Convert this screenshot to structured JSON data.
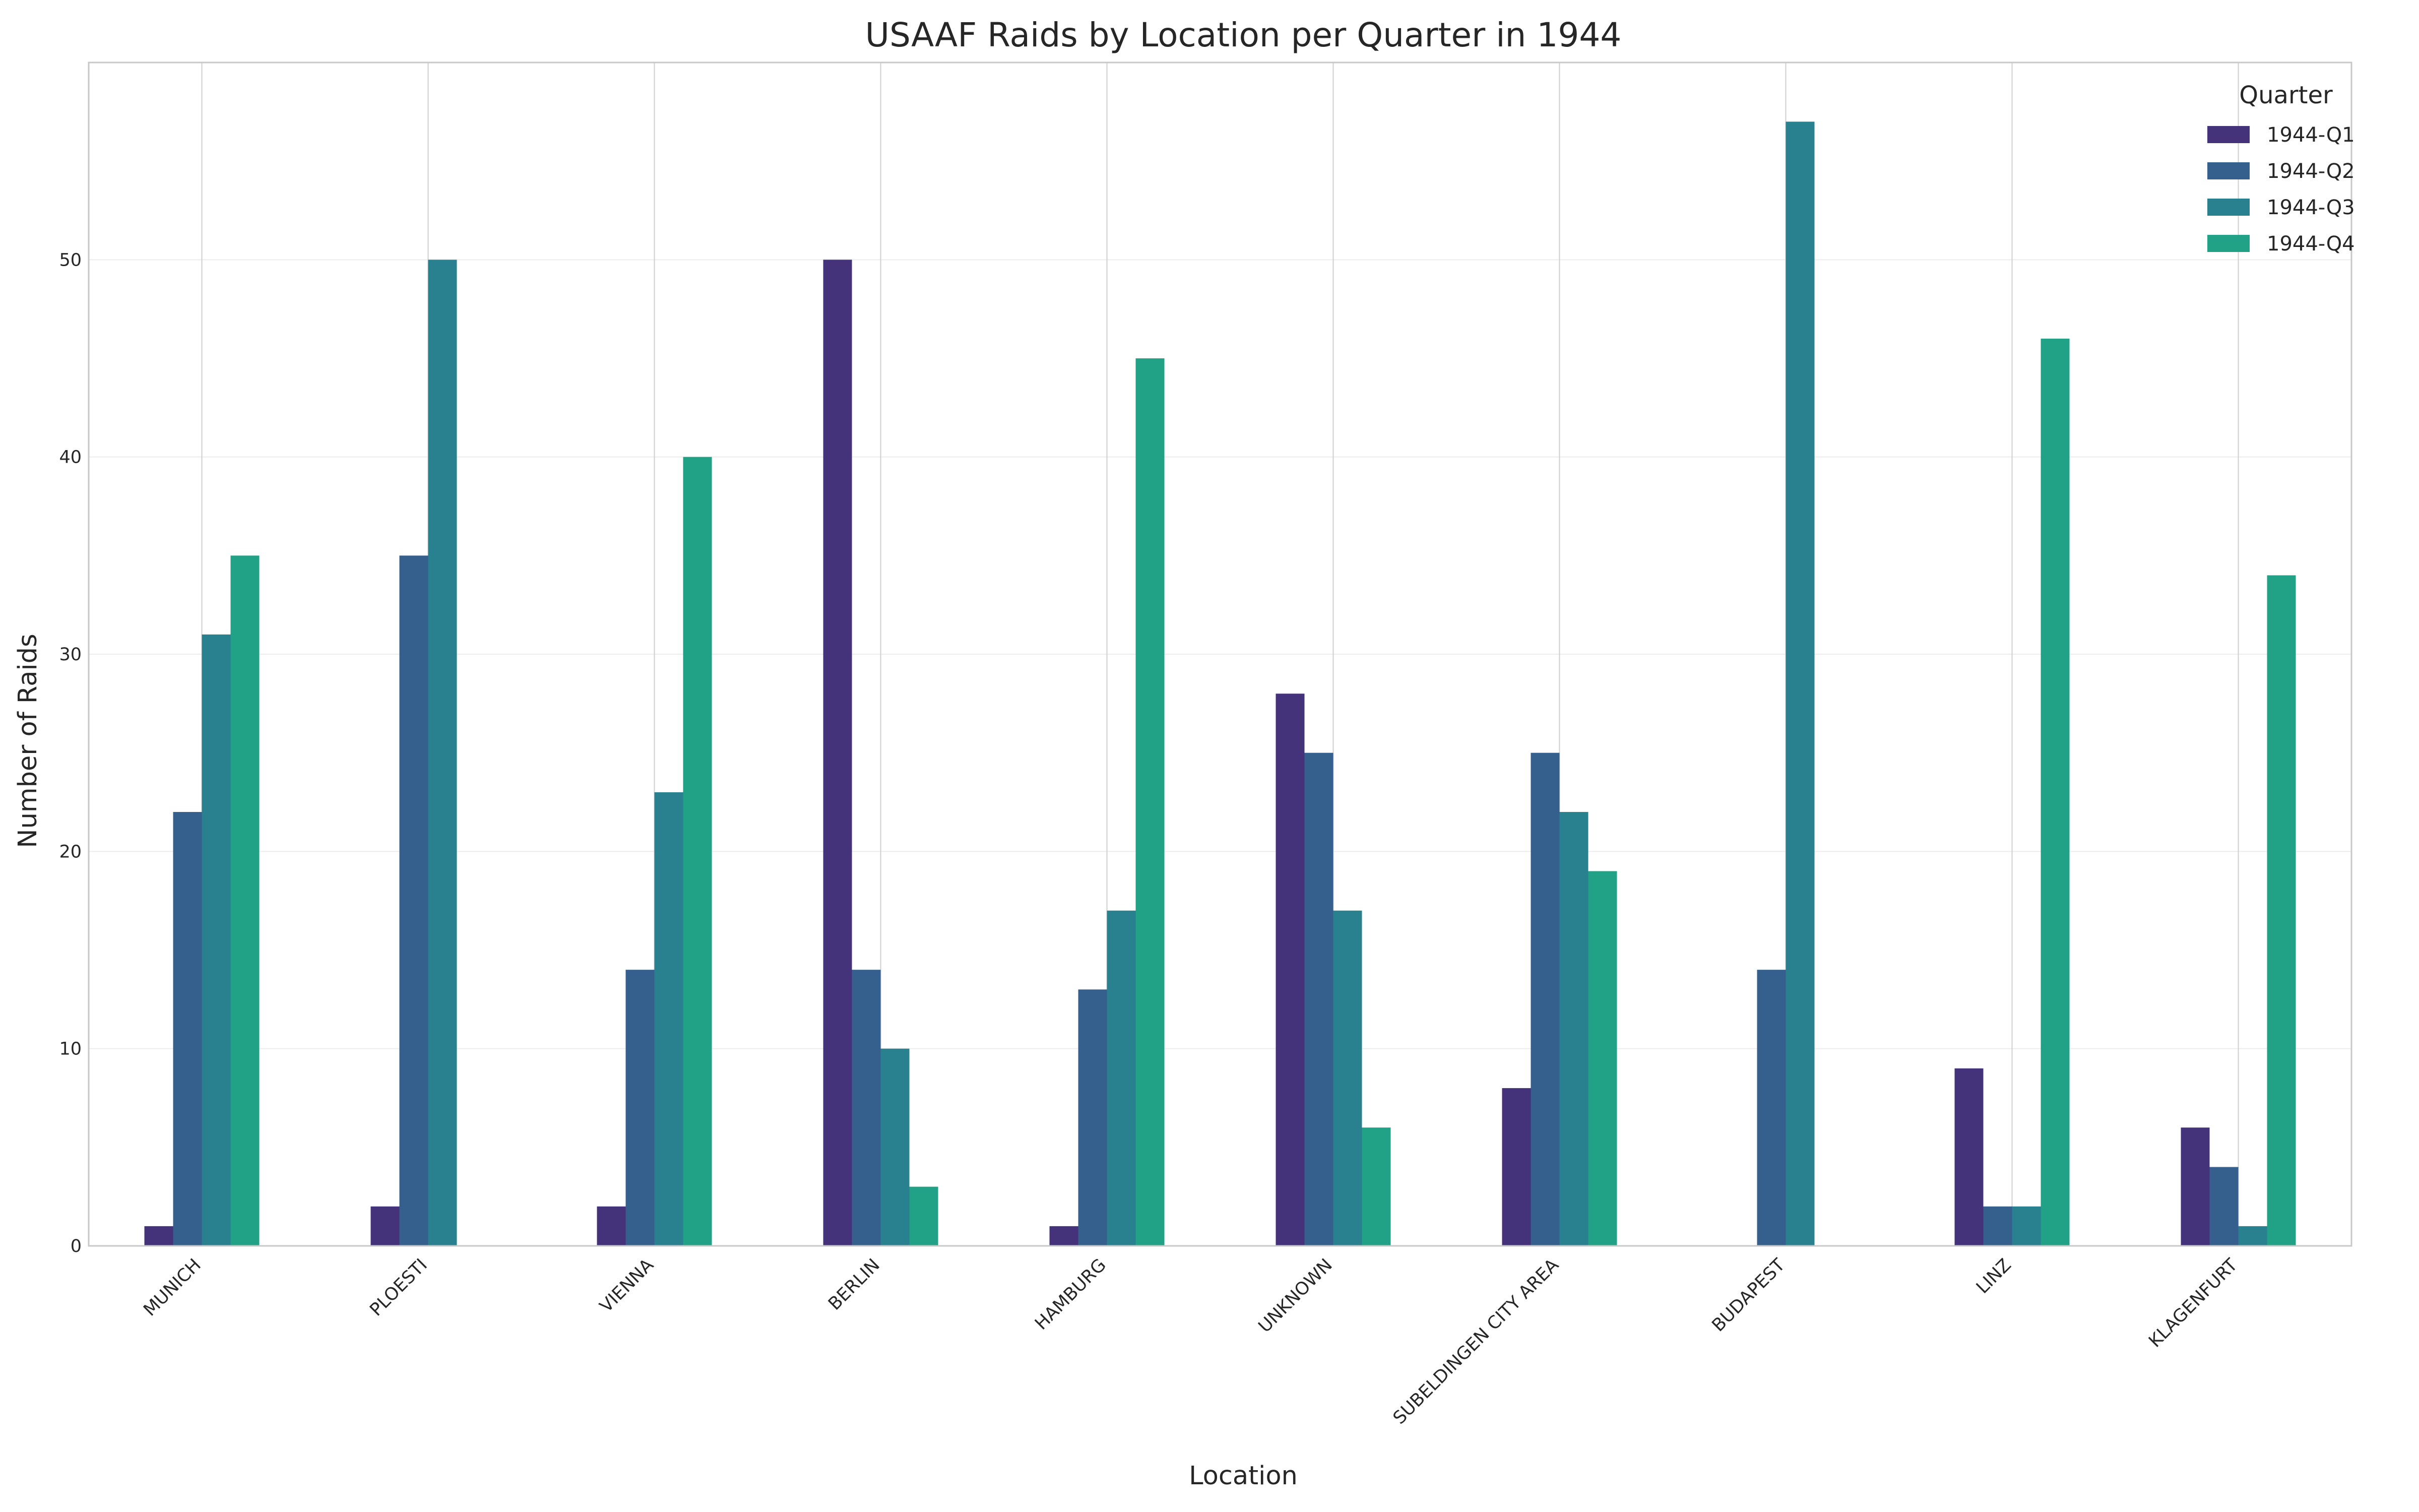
{
  "chart_data": {
    "type": "bar",
    "title": "USAAF Raids by Location per Quarter in 1944",
    "xlabel": "Location",
    "ylabel": "Number of Raids",
    "ylim": [
      0,
      60
    ],
    "yticks": [
      0,
      10,
      20,
      30,
      40,
      50
    ],
    "grid": true,
    "legend": {
      "title": "Quarter",
      "placement": "top-right"
    },
    "categories": [
      "MUNICH",
      "PLOESTI",
      "VIENNA",
      "BERLIN",
      "HAMBURG",
      "UNKNOWN",
      "SUBELDINGEN CITY AREA",
      "BUDAPEST",
      "LINZ",
      "KLAGENFURT"
    ],
    "series": [
      {
        "name": "1944-Q1",
        "color": "#44337b",
        "values": [
          1,
          2,
          2,
          50,
          1,
          28,
          8,
          0,
          9,
          6
        ]
      },
      {
        "name": "1944-Q2",
        "color": "#355f8d",
        "values": [
          22,
          35,
          14,
          14,
          13,
          25,
          25,
          14,
          2,
          4
        ]
      },
      {
        "name": "1944-Q3",
        "color": "#29808e",
        "values": [
          31,
          50,
          23,
          10,
          17,
          17,
          22,
          57,
          2,
          1
        ]
      },
      {
        "name": "1944-Q4",
        "color": "#21a185",
        "values": [
          35,
          0,
          40,
          3,
          45,
          6,
          19,
          0,
          46,
          34
        ]
      }
    ]
  }
}
